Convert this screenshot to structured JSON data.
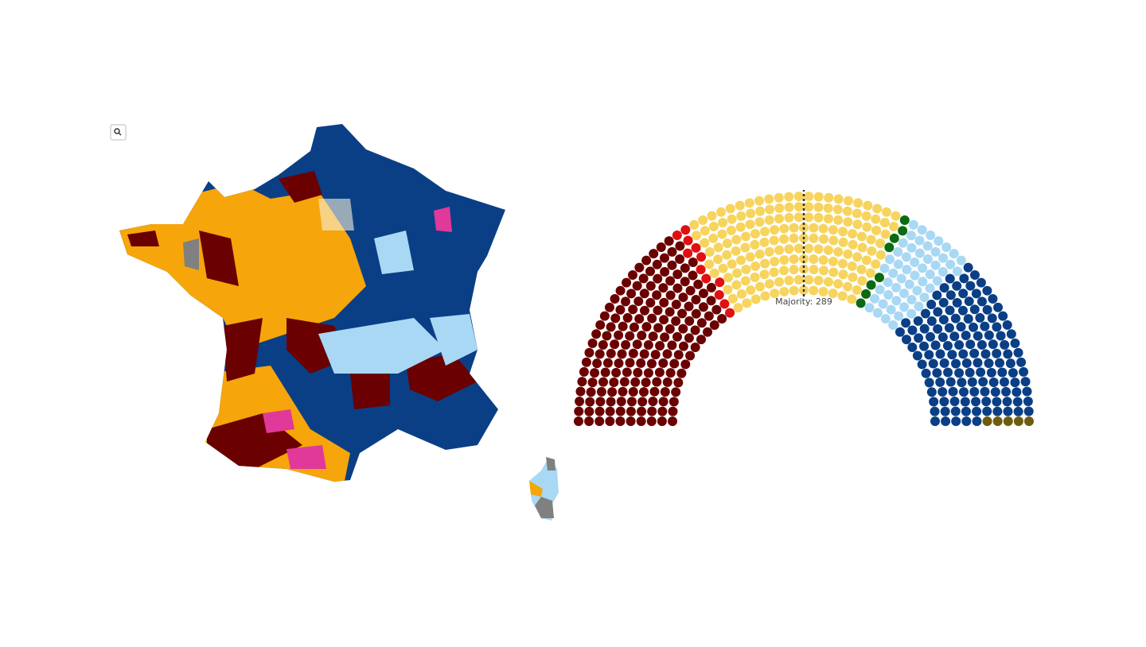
{
  "chart_data": {
    "type": "parliament",
    "values": [
      178,
      12,
      178,
      8,
      56,
      140,
      5
    ],
    "colors": [
      "#6b0000",
      "#e01010",
      "#f6d45e",
      "#0a6b12",
      "#a8d8f4",
      "#0a3f86",
      "#6e5c0e"
    ],
    "majority": {
      "value": 289,
      "label": "Majority: 289"
    }
  }
}
